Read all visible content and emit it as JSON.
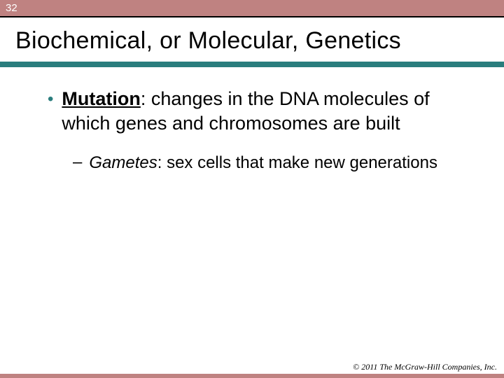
{
  "colors": {
    "header_bg": "#bf8281",
    "header_text": "#ffffff",
    "thin_rule": "#000000",
    "title_text": "#000000",
    "thick_rule": "#2a7d7d",
    "bullet_dot": "#2a7d7d",
    "body_text": "#000000",
    "footer_rule": "#bf8281",
    "copyright_text": "#000000",
    "background": "#ffffff"
  },
  "page_number": "32",
  "title": "Biochemical, or Molecular, Genetics",
  "bullets": [
    {
      "term": "Mutation",
      "rest": ": changes in the DNA molecules of which genes and chromosomes are built",
      "sub": [
        {
          "term": "Gametes",
          "rest": ": sex cells that make new generations"
        }
      ]
    }
  ],
  "copyright": "© 2011 The McGraw-Hill Companies, Inc."
}
